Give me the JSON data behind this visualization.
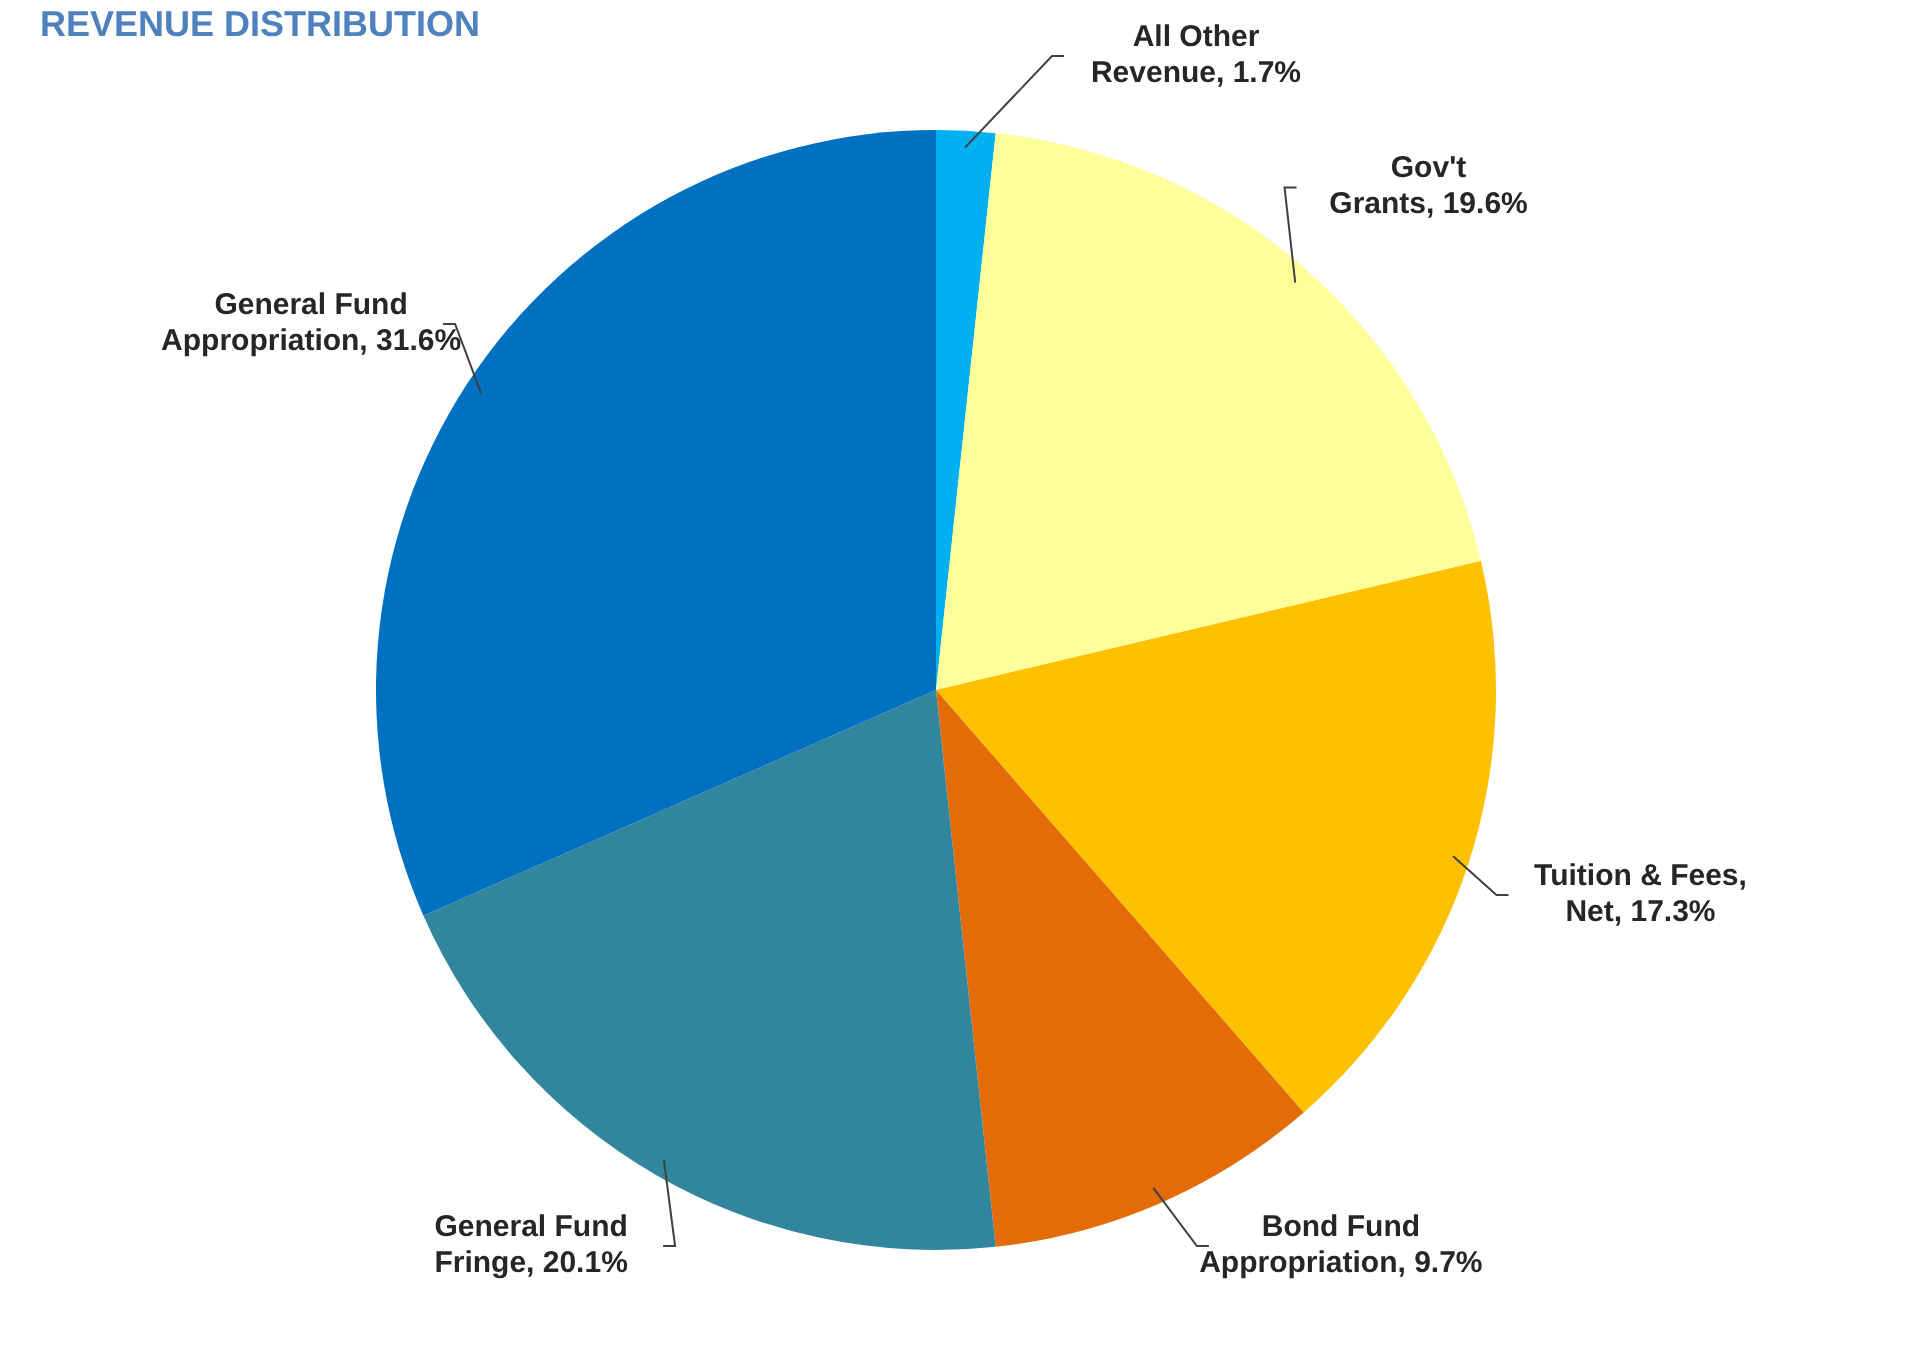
{
  "chart_data": {
    "type": "pie",
    "title": "REVENUE DISTRIBUTION",
    "categories": [
      "All Other Revenue",
      "Gov't Grants",
      "Tuition & Fees, Net",
      "Bond Fund Appropriation",
      "General Fund Fringe",
      "General Fund Appropriation"
    ],
    "values": [
      1.7,
      19.6,
      17.3,
      9.7,
      20.1,
      31.6
    ],
    "value_labels": [
      "1.7%",
      "19.6%",
      "17.3%",
      "9.7%",
      "20.1%",
      "31.6%"
    ],
    "colors": [
      "#00b0f0",
      "#ffff99",
      "#ffc000",
      "#e36c09",
      "#31859c",
      "#0070c0"
    ]
  }
}
